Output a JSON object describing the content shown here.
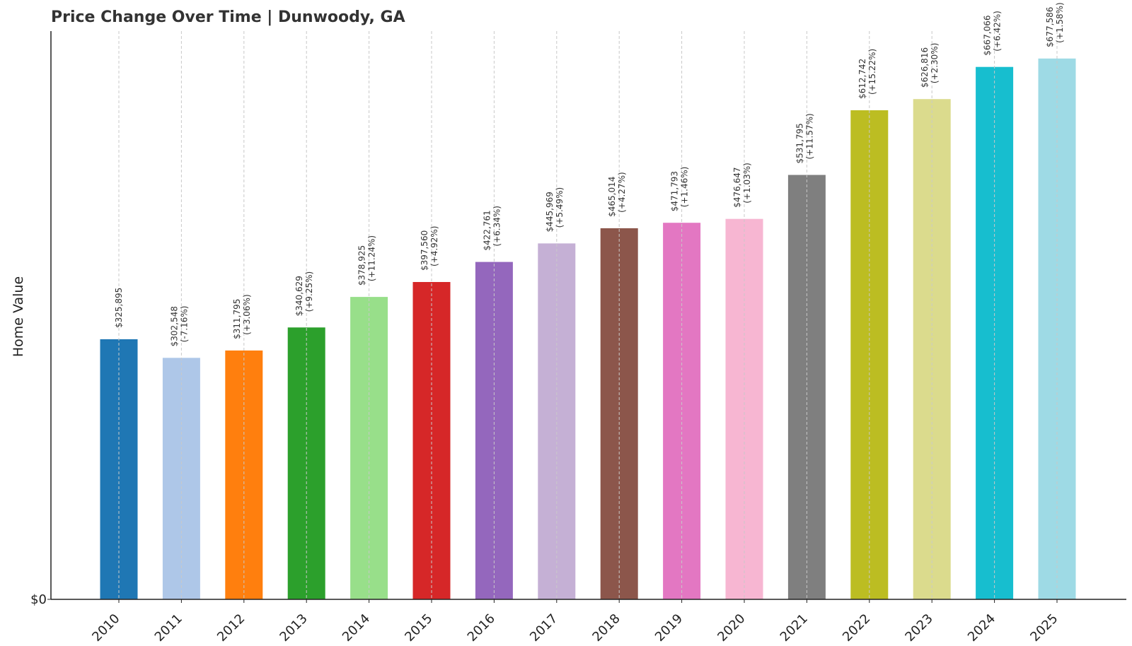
{
  "chart_data": {
    "type": "bar",
    "title": "Price Change Over Time | Dunwoody, GA",
    "xlabel": "",
    "ylabel": "Home Value",
    "ylim": [
      0,
      711965
    ],
    "y_ticks": [
      {
        "value": 0,
        "label": "$0"
      }
    ],
    "grid": "vertical dashed",
    "categories": [
      "2010",
      "2011",
      "2012",
      "2013",
      "2014",
      "2015",
      "2016",
      "2017",
      "2018",
      "2019",
      "2020",
      "2021",
      "2022",
      "2023",
      "2024",
      "2025"
    ],
    "values": [
      325895,
      302548,
      311795,
      340629,
      378925,
      397560,
      422761,
      445969,
      465014,
      471793,
      476647,
      531795,
      612742,
      626816,
      667066,
      677586
    ],
    "value_labels": [
      "$325,895",
      "$302,548",
      "$311,795",
      "$340,629",
      "$378,925",
      "$397,560",
      "$422,761",
      "$445,969",
      "$465,014",
      "$471,793",
      "$476,647",
      "$531,795",
      "$612,742",
      "$626,816",
      "$667,066",
      "$677,586"
    ],
    "change_labels": [
      "",
      "(-7.16%)",
      "(+3.06%)",
      "(+9.25%)",
      "(+11.24%)",
      "(+4.92%)",
      "(+6.34%)",
      "(+5.49%)",
      "(+4.27%)",
      "(+1.46%)",
      "(+1.03%)",
      "(+11.57%)",
      "(+15.22%)",
      "(+2.30%)",
      "(+6.42%)",
      "(+1.58%)"
    ],
    "colors": [
      "#1f77b4",
      "#aec7e8",
      "#ff7f0e",
      "#2ca02c",
      "#98df8a",
      "#d62728",
      "#9467bd",
      "#c5b0d5",
      "#8c564b",
      "#e377c2",
      "#f7b6d2",
      "#7f7f7f",
      "#bcbd22",
      "#dbdb8d",
      "#17becf",
      "#9edae5"
    ]
  }
}
